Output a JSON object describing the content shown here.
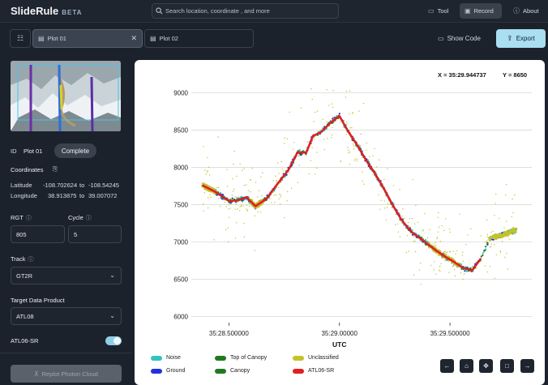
{
  "app": {
    "name": "SlideRule",
    "badge": "BETA"
  },
  "search": {
    "placeholder": "Search location, coordinate , and more"
  },
  "nav": {
    "tool": "Tool",
    "record": "Record",
    "about": "About"
  },
  "tabs": [
    {
      "label": "Plot 01",
      "active": true
    },
    {
      "label": "Plot 02",
      "active": false
    }
  ],
  "actions": {
    "show_code": "Show Code",
    "export": "Export"
  },
  "sidebar": {
    "id_label": "ID",
    "id_value": "Plot 01",
    "status": "Complete",
    "coordinates_label": "Coordinates",
    "latitude_label": "Latitude",
    "latitude_from": "-108.702624",
    "latitude_to_word": "to",
    "latitude_to": "-108.54245",
    "longitude_label": "Longitude",
    "longitude_from": "38.913875",
    "longitude_to_word": "to",
    "longitude_to": "39.007072",
    "rgt_label": "RGT",
    "rgt_value": "805",
    "cycle_label": "Cycle",
    "cycle_value": "5",
    "track_label": "Track",
    "track_value": "GT2R",
    "product_label": "Target Data Product",
    "product_value": "ATL08",
    "atl06_label": "ATL06-SR",
    "atl06_enabled": true,
    "replot_label": "Replot Photon Cloud"
  },
  "plot": {
    "readout_x": "X = 35:29.944737",
    "readout_y": "Y = 8650",
    "legend": [
      {
        "name": "Noise",
        "color": "#2ec4c4"
      },
      {
        "name": "Ground",
        "color": "#2430e0"
      },
      {
        "name": "Top of Canopy",
        "color": "#1f7a1f"
      },
      {
        "name": "Canopy",
        "color": "#1f7a1f"
      },
      {
        "name": "Unclassified",
        "color": "#c4c22a"
      },
      {
        "name": "ATL06-SR",
        "color": "#e02020"
      }
    ],
    "toolbar": [
      "back-icon",
      "home-icon",
      "pan-icon",
      "zoom-box-icon",
      "forward-icon"
    ]
  },
  "chart_data": {
    "type": "scatter",
    "xlabel": "UTC",
    "ylabel": "",
    "x_ticks": [
      "35:28.500000",
      "35:29.00000",
      "35:29.500000"
    ],
    "x_tick_positions": [
      0,
      0.5,
      1.0
    ],
    "xlim": [
      -0.17,
      1.37
    ],
    "ylim": [
      5920,
      9060
    ],
    "y_ticks": [
      6000,
      6500,
      7000,
      7500,
      8000,
      8500,
      9000
    ],
    "grid": true,
    "surface_profile": {
      "x": [
        -0.12,
        -0.06,
        0.0,
        0.04,
        0.08,
        0.12,
        0.17,
        0.22,
        0.27,
        0.31,
        0.35,
        0.38,
        0.42,
        0.46,
        0.5,
        0.54,
        0.58,
        0.62,
        0.66,
        0.7,
        0.74,
        0.78,
        0.82,
        0.86,
        0.9,
        0.94,
        0.98,
        1.02,
        1.06,
        1.1,
        1.14,
        1.18,
        1.22,
        1.26,
        1.3
      ],
      "y": [
        7760,
        7670,
        7550,
        7560,
        7600,
        7480,
        7580,
        7780,
        7970,
        8200,
        8200,
        8420,
        8480,
        8600,
        8690,
        8480,
        8300,
        8100,
        7920,
        7720,
        7500,
        7300,
        7150,
        7060,
        6970,
        6880,
        6800,
        6730,
        6650,
        6620,
        6780,
        7050,
        7080,
        7120,
        7160
      ]
    },
    "series": [
      {
        "name": "Noise",
        "role": "scattered points around profile"
      },
      {
        "name": "Ground"
      },
      {
        "name": "Top of Canopy"
      },
      {
        "name": "Canopy"
      },
      {
        "name": "Unclassified",
        "role": "sparse scatter 6300-9000 and tail segment after 35:29.6"
      },
      {
        "name": "ATL06-SR",
        "role": "surface line"
      }
    ]
  }
}
